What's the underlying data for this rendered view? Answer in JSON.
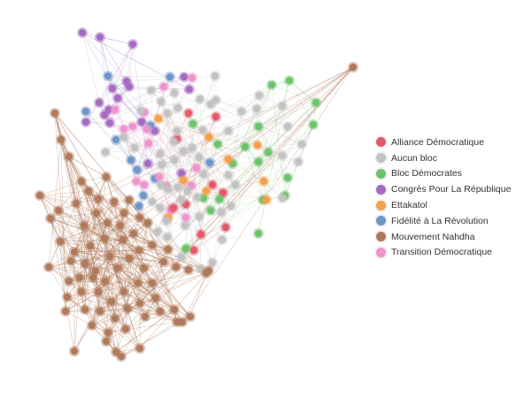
{
  "legend": {
    "items": [
      {
        "label": "Alliance Démocratique",
        "color": "#e45a6a"
      },
      {
        "label": "Aucun bloc",
        "color": "#c2c2c2"
      },
      {
        "label": "Bloc Démocrates",
        "color": "#6cc36a"
      },
      {
        "label": "Congrès Pour La République",
        "color": "#a46bbf"
      },
      {
        "label": "Ettakatol",
        "color": "#f4a04a"
      },
      {
        "label": "Fidélité à La Révolution",
        "color": "#6f96c7"
      },
      {
        "label": "Mouvement Nahdha",
        "color": "#b07a5a"
      },
      {
        "label": "Transition Démocratique",
        "color": "#ef93cd"
      }
    ]
  }
}
